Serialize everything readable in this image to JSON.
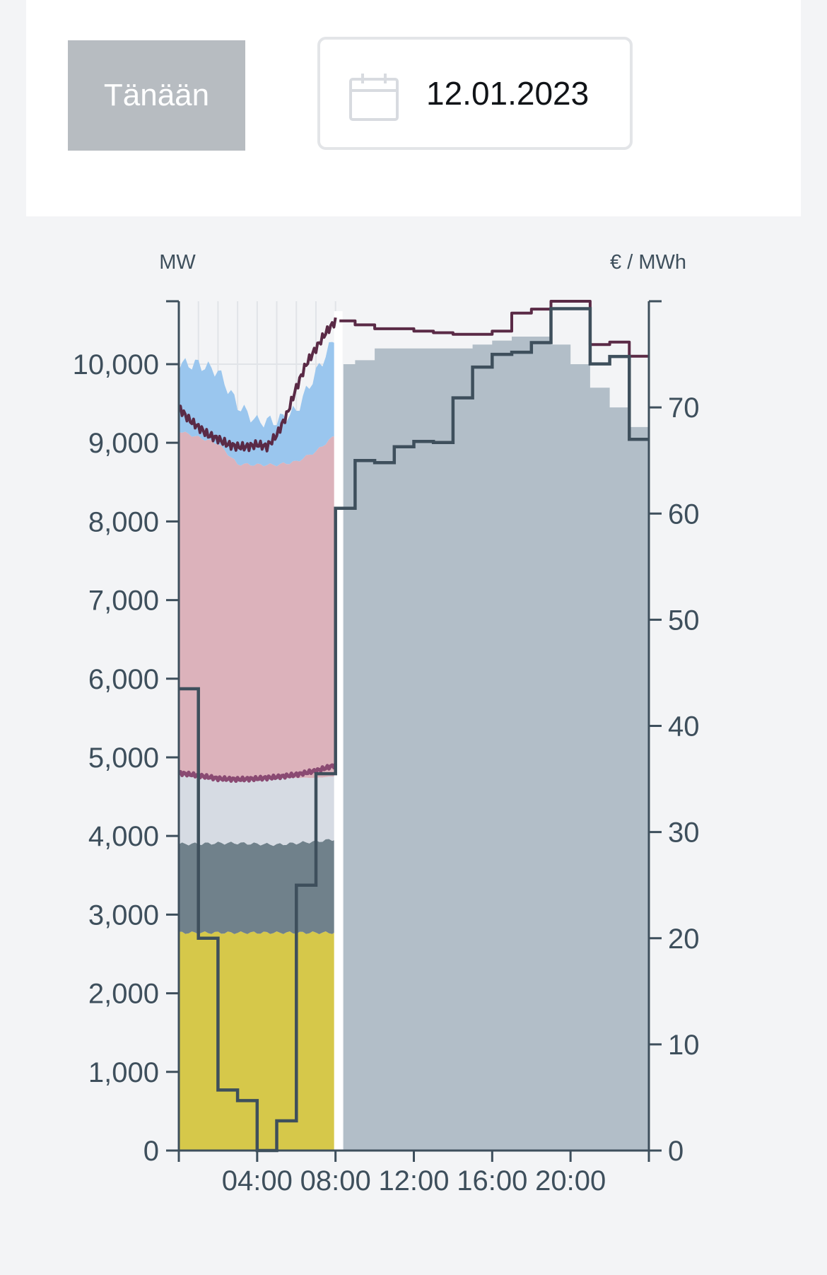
{
  "controls": {
    "today_label": "Tänään",
    "date_value": "12.01.2023"
  },
  "colors": {
    "background": "#f3f4f6",
    "axis": "#3e4f5c",
    "nuclear": "#d6c84a",
    "hydro": "#70818b",
    "chp": "#d6dbe3",
    "wind": "#dcb2bb",
    "other": "#9ac6ee",
    "forecast": "#b2bec8",
    "consumption_line": "#5a2a46",
    "import_line": "#8a4a72",
    "price_line": "#3e4f5c"
  },
  "icons": {
    "date_picker": "calendar-icon"
  },
  "chart_data": {
    "type": "area",
    "left_axis_unit": "MW",
    "right_axis_unit": "€ / MWh",
    "ylim": [
      0,
      10800
    ],
    "y2lim": [
      0,
      80
    ],
    "xlim": [
      0,
      24
    ],
    "y_ticks": [
      "0",
      "1,000",
      "2,000",
      "3,000",
      "4,000",
      "5,000",
      "6,000",
      "7,000",
      "8,000",
      "9,000",
      "10,000"
    ],
    "y2_ticks": [
      "0",
      "10",
      "20",
      "30",
      "40",
      "50",
      "60",
      "70"
    ],
    "x_ticks": [
      "04:00",
      "08:00",
      "12:00",
      "16:00",
      "20:00"
    ],
    "x_tick_hours": [
      4,
      8,
      12,
      16,
      20
    ],
    "grid": true,
    "now_hour": 8,
    "stacked_series": [
      {
        "key": "nuclear",
        "color": "#d6c84a",
        "x": [
          0,
          8
        ],
        "values": [
          2770,
          2770
        ]
      },
      {
        "key": "hydro",
        "color": "#70818b",
        "x": [
          0,
          1,
          2,
          3,
          4,
          5,
          6,
          7,
          8
        ],
        "values": [
          1130,
          1130,
          1140,
          1140,
          1130,
          1120,
          1140,
          1160,
          1190
        ]
      },
      {
        "key": "chp",
        "color": "#d6dbe3",
        "x": [
          0,
          1,
          2,
          3,
          4,
          5,
          6,
          7,
          8
        ],
        "values": [
          900,
          830,
          830,
          820,
          840,
          840,
          830,
          810,
          800
        ]
      },
      {
        "key": "wind",
        "color": "#dcb2bb",
        "x": [
          0,
          1,
          2,
          3,
          4,
          5,
          6,
          7,
          8
        ],
        "values": [
          4350,
          4340,
          4250,
          4000,
          3980,
          3990,
          4020,
          4150,
          4340
        ]
      },
      {
        "key": "other",
        "color": "#9ac6ee",
        "x": [
          0,
          1,
          2,
          3,
          4,
          5,
          6,
          7,
          8
        ],
        "values": [
          850,
          930,
          920,
          750,
          550,
          560,
          650,
          1000,
          1250
        ]
      }
    ],
    "forecast_area": {
      "color": "#b2bec8",
      "x": [
        8.4,
        9,
        10,
        11,
        12,
        13,
        14,
        15,
        16,
        17,
        18,
        19,
        20,
        21,
        22,
        23,
        24
      ],
      "values": [
        10000,
        10050,
        10200,
        10200,
        10200,
        10200,
        10200,
        10250,
        10300,
        10350,
        10350,
        10250,
        10000,
        9700,
        9450,
        9200,
        9200
      ]
    },
    "lines": [
      {
        "key": "consumption",
        "color": "#5a2a46",
        "x": [
          0,
          0.5,
          1,
          1.5,
          2,
          2.5,
          3,
          3.5,
          4,
          4.5,
          5,
          5.5,
          6,
          6.5,
          7,
          7.5,
          8
        ],
        "values": [
          9450,
          9300,
          9200,
          9100,
          9050,
          8980,
          8950,
          8950,
          8980,
          8950,
          9100,
          9350,
          9700,
          10000,
          10200,
          10400,
          10550
        ]
      },
      {
        "key": "consumption_forecast",
        "color": "#5a2a46",
        "x": [
          8.2,
          9,
          10,
          11,
          12,
          13,
          14,
          15,
          16,
          17,
          18,
          19,
          20,
          21,
          22,
          23,
          24
        ],
        "values": [
          10550,
          10500,
          10450,
          10450,
          10420,
          10400,
          10380,
          10380,
          10420,
          10650,
          10700,
          10800,
          10800,
          10250,
          10280,
          10100,
          10100
        ]
      },
      {
        "key": "import_top",
        "color": "#8a4a72",
        "x": [
          0,
          1,
          2,
          3,
          4,
          5,
          6,
          7,
          8
        ],
        "values": [
          4800,
          4770,
          4730,
          4720,
          4730,
          4750,
          4780,
          4830,
          4900
        ]
      }
    ],
    "price": {
      "color": "#3e4f5c",
      "x": [
        0,
        1,
        2,
        3,
        4,
        5,
        6,
        7,
        8,
        9,
        10,
        11,
        12,
        13,
        14,
        15,
        16,
        17,
        18,
        19,
        20,
        21,
        22,
        23,
        24
      ],
      "values": [
        43.5,
        20,
        5.7,
        4.7,
        0,
        2.8,
        25,
        35.5,
        60.5,
        65,
        64.8,
        66.3,
        66.8,
        66.7,
        70.9,
        73.8,
        75,
        75.2,
        76.1,
        79.3,
        79.3,
        74.1,
        74.8,
        67,
        67
      ]
    }
  }
}
